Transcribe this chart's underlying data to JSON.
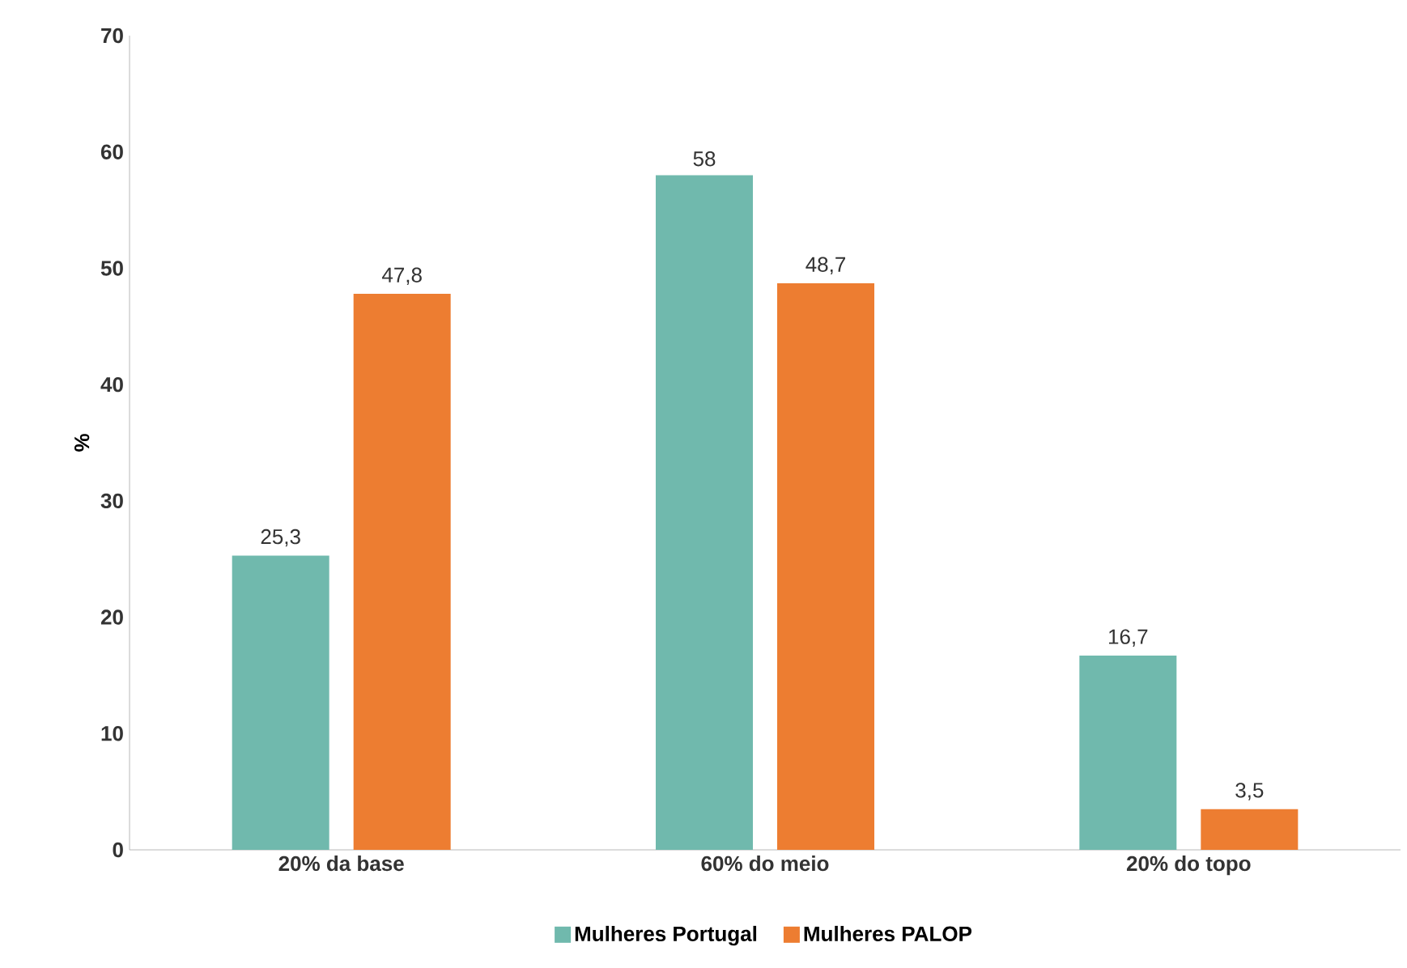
{
  "chart_data": {
    "type": "bar",
    "ylabel": "%",
    "categories": [
      "20% da base",
      "60% do meio",
      "20% do topo"
    ],
    "series": [
      {
        "name": "Mulheres Portugal",
        "color": "#70b9ad",
        "values": [
          25.3,
          58,
          16.7
        ],
        "value_labels": [
          "25,3",
          "58",
          "16,7"
        ]
      },
      {
        "name": "Mulheres PALOP",
        "color": "#ed7d31",
        "values": [
          47.8,
          48.7,
          3.5
        ],
        "value_labels": [
          "47,8",
          "48,7",
          "3,5"
        ]
      }
    ],
    "ylim": [
      0,
      70
    ],
    "yticks": [
      0,
      10,
      20,
      30,
      40,
      50,
      60,
      70
    ],
    "grid": false,
    "legend": "bottom"
  }
}
